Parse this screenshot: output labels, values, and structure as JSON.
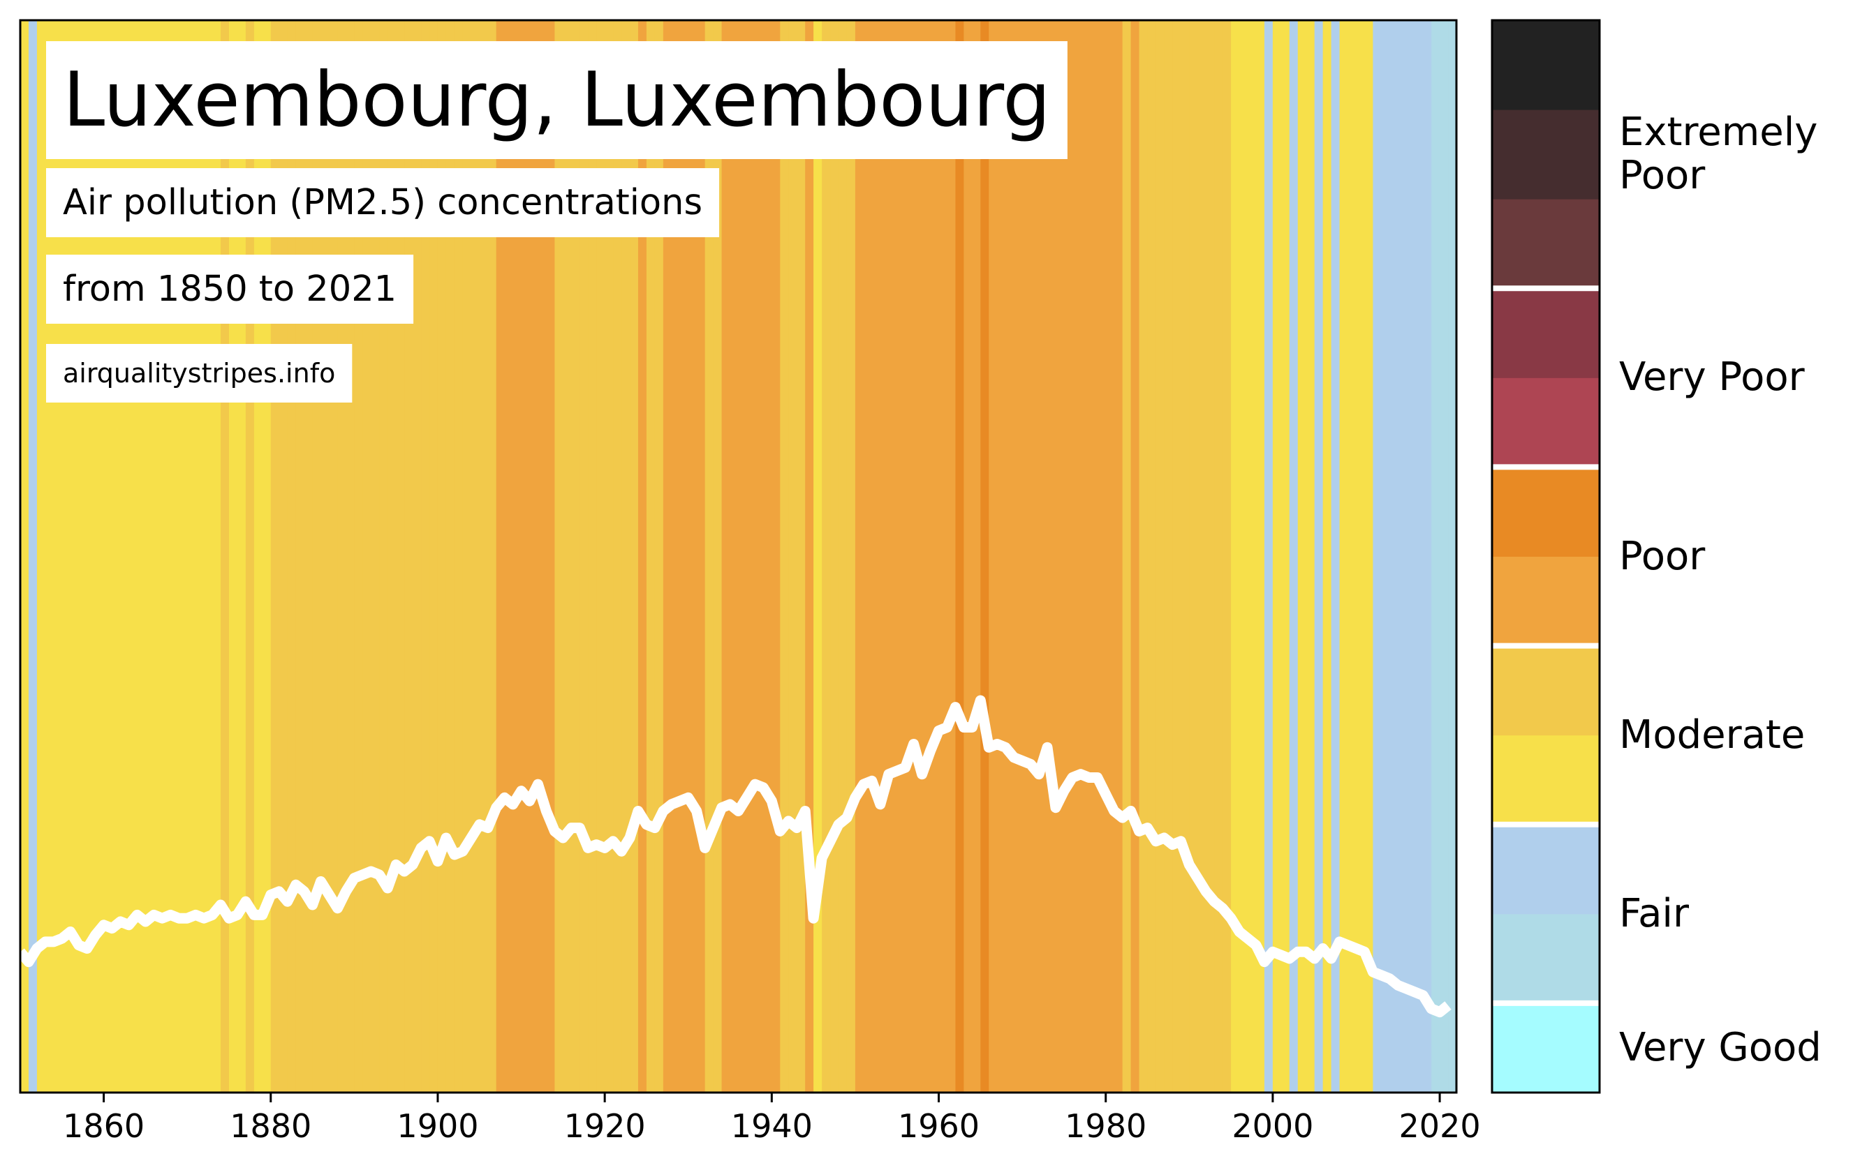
{
  "chart_data": {
    "type": "stripes",
    "title": "Luxembourg, Luxembourg",
    "subtitle": [
      "Air pollution (PM2.5) concentrations",
      "from 1850 to 2021"
    ],
    "source": "airqualitystripes.info",
    "x": [
      1850,
      1851,
      1852,
      1853,
      1854,
      1855,
      1856,
      1857,
      1858,
      1859,
      1860,
      1861,
      1862,
      1863,
      1864,
      1865,
      1866,
      1867,
      1868,
      1869,
      1870,
      1871,
      1872,
      1873,
      1874,
      1875,
      1876,
      1877,
      1878,
      1879,
      1880,
      1881,
      1882,
      1883,
      1884,
      1885,
      1886,
      1887,
      1888,
      1889,
      1890,
      1891,
      1892,
      1893,
      1894,
      1895,
      1896,
      1897,
      1898,
      1899,
      1900,
      1901,
      1902,
      1903,
      1904,
      1905,
      1906,
      1907,
      1908,
      1909,
      1910,
      1911,
      1912,
      1913,
      1914,
      1915,
      1916,
      1917,
      1918,
      1919,
      1920,
      1921,
      1922,
      1923,
      1924,
      1925,
      1926,
      1927,
      1928,
      1929,
      1930,
      1931,
      1932,
      1933,
      1934,
      1935,
      1936,
      1937,
      1938,
      1939,
      1940,
      1941,
      1942,
      1943,
      1944,
      1945,
      1946,
      1947,
      1948,
      1949,
      1950,
      1951,
      1952,
      1953,
      1954,
      1955,
      1956,
      1957,
      1958,
      1959,
      1960,
      1961,
      1962,
      1963,
      1964,
      1965,
      1966,
      1967,
      1968,
      1969,
      1970,
      1971,
      1972,
      1973,
      1974,
      1975,
      1976,
      1977,
      1978,
      1979,
      1980,
      1981,
      1982,
      1983,
      1984,
      1985,
      1986,
      1987,
      1988,
      1989,
      1990,
      1991,
      1992,
      1993,
      1994,
      1995,
      1996,
      1997,
      1998,
      1999,
      2000,
      2001,
      2002,
      2003,
      2004,
      2005,
      2006,
      2007,
      2008,
      2009,
      2010,
      2011,
      2012,
      2013,
      2014,
      2015,
      2016,
      2017,
      2018,
      2019,
      2020,
      2021
    ],
    "values": [
      11.2,
      10.9,
      11.3,
      11.5,
      11.5,
      11.6,
      11.8,
      11.4,
      11.3,
      11.7,
      12.0,
      11.9,
      12.1,
      12.0,
      12.3,
      12.1,
      12.3,
      12.2,
      12.3,
      12.2,
      12.2,
      12.3,
      12.2,
      12.3,
      12.6,
      12.2,
      12.3,
      12.7,
      12.3,
      12.3,
      12.9,
      13.0,
      12.7,
      13.2,
      13.0,
      12.6,
      13.3,
      12.9,
      12.5,
      13.0,
      13.4,
      13.5,
      13.6,
      13.5,
      13.1,
      13.8,
      13.6,
      13.8,
      14.3,
      14.5,
      13.9,
      14.6,
      14.1,
      14.2,
      14.6,
      15.0,
      14.9,
      15.5,
      15.8,
      15.6,
      16.0,
      15.7,
      16.2,
      15.4,
      14.8,
      14.6,
      14.9,
      14.9,
      14.3,
      14.4,
      14.3,
      14.5,
      14.2,
      14.6,
      15.4,
      15.0,
      14.9,
      15.4,
      15.6,
      15.7,
      15.8,
      15.4,
      14.3,
      14.9,
      15.5,
      15.6,
      15.4,
      15.8,
      16.2,
      16.1,
      15.7,
      14.8,
      15.1,
      14.9,
      15.4,
      12.2,
      14.0,
      14.5,
      15.0,
      15.2,
      15.8,
      16.2,
      16.3,
      15.6,
      16.5,
      16.6,
      16.7,
      17.4,
      16.5,
      17.2,
      17.8,
      17.9,
      18.5,
      17.9,
      17.9,
      18.7,
      17.3,
      17.4,
      17.3,
      17.0,
      16.9,
      16.8,
      16.5,
      17.3,
      15.5,
      16.0,
      16.4,
      16.5,
      16.4,
      16.4,
      15.9,
      15.4,
      15.2,
      15.4,
      14.8,
      14.9,
      14.5,
      14.6,
      14.4,
      14.5,
      13.8,
      13.4,
      13.0,
      12.7,
      12.5,
      12.2,
      11.8,
      11.6,
      11.4,
      10.9,
      11.2,
      11.1,
      11.0,
      11.2,
      11.2,
      11.0,
      11.3,
      11.0,
      11.5,
      11.4,
      11.3,
      11.2,
      10.6,
      10.5,
      10.4,
      10.2,
      10.1,
      10.0,
      9.9,
      9.5,
      9.4,
      9.6
    ],
    "line_color": "#ffffff",
    "xlim": [
      1850,
      2022
    ],
    "xticks": [
      1860,
      1880,
      1900,
      1920,
      1940,
      1960,
      1980,
      2000,
      2020
    ],
    "ylim": [
      7,
      39
    ],
    "levels": [
      {
        "min": 0,
        "color": "#a5fcff"
      },
      {
        "min": 7,
        "color": "#afdbe7"
      },
      {
        "min": 9.8,
        "color": "#b0cfec"
      },
      {
        "min": 11.1,
        "color": "#f7e04a"
      },
      {
        "min": 12.4,
        "color": "#f2c94b"
      },
      {
        "min": 15.3,
        "color": "#f0a43e"
      },
      {
        "min": 18.0,
        "color": "#e88a24"
      },
      {
        "min": 20.5,
        "color": "#ae4553"
      },
      {
        "min": 23,
        "color": "#893945"
      },
      {
        "min": 25.5,
        "color": "#6a3a3c"
      },
      {
        "min": 28,
        "color": "#452d2f"
      },
      {
        "min": 30.5,
        "color": "#222222"
      }
    ],
    "groups": [
      {
        "label": "Very Good",
        "levels": [
          0,
          0
        ]
      },
      {
        "label": "Fair",
        "levels": [
          1,
          2
        ]
      },
      {
        "label": "Moderate",
        "levels": [
          3,
          4
        ]
      },
      {
        "label": "Poor",
        "levels": [
          5,
          6
        ]
      },
      {
        "label": "Very Poor",
        "levels": [
          7,
          8
        ]
      },
      {
        "label": "Extremely Poor",
        "levels": [
          9,
          11
        ]
      }
    ]
  }
}
